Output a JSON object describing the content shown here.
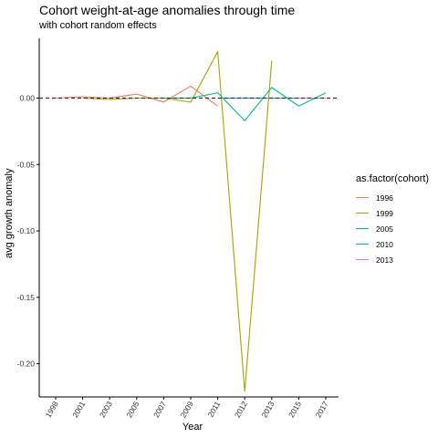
{
  "chart_data": {
    "type": "line",
    "title": "Cohort weight-at-age anomalies through time",
    "subtitle": "with cohort random effects",
    "xlabel": "Year",
    "ylabel": "avg growth anomaly",
    "x_ticks": [
      "1998",
      "2001",
      "2003",
      "2005",
      "2007",
      "2009",
      "2011",
      "2012",
      "2013",
      "2015",
      "2017"
    ],
    "y_ticks": [
      0.0,
      -0.05,
      -0.1,
      -0.15,
      -0.2
    ],
    "y_tick_labels": [
      "0.00",
      "-0.05",
      "-0.10",
      "-0.15",
      "-0.20"
    ],
    "ylim": [
      -0.225,
      0.045
    ],
    "reference_line": {
      "y": 0,
      "style": "dashed",
      "color": "#333333"
    },
    "legend_title": "as.factor(cohort)",
    "legend_position": "right",
    "grid": false,
    "series": [
      {
        "name": "1996",
        "color": "#F8766D",
        "points": [
          [
            "1998",
            0.0
          ],
          [
            "2001",
            0.001
          ],
          [
            "2003",
            0.0
          ],
          [
            "2005",
            0.003
          ],
          [
            "2007",
            -0.003
          ],
          [
            "2009",
            0.009
          ],
          [
            "2011",
            -0.006
          ]
        ]
      },
      {
        "name": "1999",
        "color": "#A3A500",
        "points": [
          [
            "2001",
            0.0
          ],
          [
            "2003",
            -0.001
          ],
          [
            "2005",
            0.0
          ],
          [
            "2007",
            0.0
          ],
          [
            "2009",
            -0.003
          ],
          [
            "2011",
            0.035
          ],
          [
            "2012",
            -0.221
          ],
          [
            "2013",
            0.028
          ]
        ]
      },
      {
        "name": "2005",
        "color": "#00BF7D",
        "points": [
          [
            "2007",
            0.0
          ],
          [
            "2009",
            0.0
          ],
          [
            "2011",
            0.004
          ],
          [
            "2012",
            -0.017
          ],
          [
            "2013",
            0.008
          ],
          [
            "2015",
            -0.006
          ],
          [
            "2017",
            0.004
          ]
        ]
      },
      {
        "name": "2010",
        "color": "#00B0F6",
        "points": [
          [
            "2011",
            0.0
          ],
          [
            "2012",
            0.0
          ],
          [
            "2013",
            0.0
          ],
          [
            "2015",
            0.0
          ],
          [
            "2017",
            0.0
          ]
        ]
      },
      {
        "name": "2013",
        "color": "#E76BF3",
        "points": [
          [
            "2015",
            0.0
          ],
          [
            "2017",
            0.0
          ]
        ]
      }
    ]
  }
}
